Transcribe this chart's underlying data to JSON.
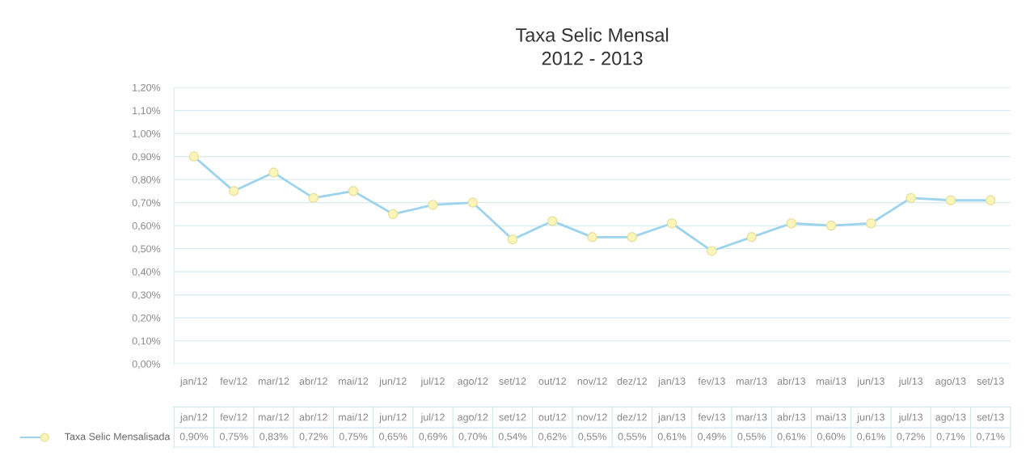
{
  "chart_data": {
    "type": "line",
    "title": "Taxa Selic Mensal\n2012 - 2013",
    "categories": [
      "jan/12",
      "fev/12",
      "mar/12",
      "abr/12",
      "mai/12",
      "jun/12",
      "jul/12",
      "ago/12",
      "set/12",
      "out/12",
      "nov/12",
      "dez/12",
      "jan/13",
      "fev/13",
      "mar/13",
      "abr/13",
      "mai/13",
      "jun/13",
      "jul/13",
      "ago/13",
      "set/13"
    ],
    "series": [
      {
        "name": "Taxa Selic Mensalisada",
        "color": "#9dd3ec",
        "values": [
          0.9,
          0.75,
          0.83,
          0.72,
          0.75,
          0.65,
          0.69,
          0.7,
          0.54,
          0.62,
          0.55,
          0.55,
          0.61,
          0.49,
          0.55,
          0.61,
          0.6,
          0.61,
          0.72,
          0.71,
          0.71
        ],
        "value_labels": [
          "0,90%",
          "0,75%",
          "0,83%",
          "0,72%",
          "0,75%",
          "0,65%",
          "0,69%",
          "0,70%",
          "0,54%",
          "0,62%",
          "0,55%",
          "0,55%",
          "0,61%",
          "0,49%",
          "0,55%",
          "0,61%",
          "0,60%",
          "0,61%",
          "0,72%",
          "0,71%",
          "0,71%"
        ]
      }
    ],
    "ylim": [
      0,
      1.2
    ],
    "yticks": [
      {
        "value": 0,
        "label": "0,00%"
      },
      {
        "value": 0.1,
        "label": "0,10%"
      },
      {
        "value": 0.2,
        "label": "0,20%"
      },
      {
        "value": 0.3,
        "label": "0,30%"
      },
      {
        "value": 0.4,
        "label": "0,40%"
      },
      {
        "value": 0.5,
        "label": "0,50%"
      },
      {
        "value": 0.6,
        "label": "0,60%"
      },
      {
        "value": 0.7,
        "label": "0,70%"
      },
      {
        "value": 0.8,
        "label": "0,80%"
      },
      {
        "value": 0.9,
        "label": "0,90%"
      },
      {
        "value": 1.0,
        "label": "1,00%"
      },
      {
        "value": 1.1,
        "label": "1,10%"
      },
      {
        "value": 1.2,
        "label": "1,20%"
      }
    ],
    "grid": "y",
    "marker": "circle",
    "line_style": "solid",
    "legend": "bottom left"
  }
}
